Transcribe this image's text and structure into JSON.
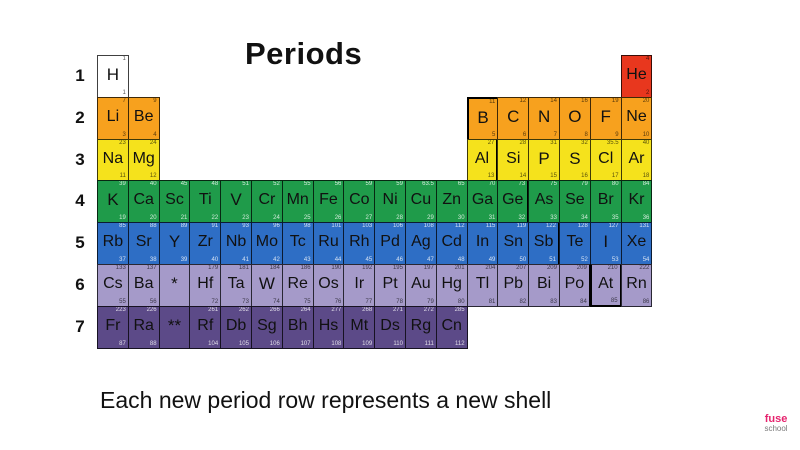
{
  "title": "Periods",
  "period_labels": [
    "1",
    "2",
    "3",
    "4",
    "5",
    "6",
    "7"
  ],
  "footer": "Each new period row represents a new shell",
  "logo": {
    "line1": "fuse",
    "line2": "school"
  },
  "colors": {
    "1": "#ffffff",
    "2": "#f7a11e",
    "3": "#f5e21c",
    "4": "#1f9b4a",
    "5": "#2e6ec5",
    "6": "#a59ac9",
    "7": "#5c4a88",
    "He": "#e8371e"
  },
  "elements": [
    {
      "s": "H",
      "p": 1,
      "c": 1,
      "m": "1",
      "n": "1"
    },
    {
      "s": "He",
      "p": 1,
      "c": 18,
      "m": "4",
      "n": "2"
    },
    {
      "s": "Li",
      "p": 2,
      "c": 1,
      "m": "7",
      "n": "3"
    },
    {
      "s": "Be",
      "p": 2,
      "c": 2,
      "m": "9",
      "n": "4"
    },
    {
      "s": "B",
      "p": 2,
      "c": 13,
      "m": "11",
      "n": "5"
    },
    {
      "s": "C",
      "p": 2,
      "c": 14,
      "m": "12",
      "n": "6"
    },
    {
      "s": "N",
      "p": 2,
      "c": 15,
      "m": "14",
      "n": "7"
    },
    {
      "s": "O",
      "p": 2,
      "c": 16,
      "m": "16",
      "n": "8"
    },
    {
      "s": "F",
      "p": 2,
      "c": 17,
      "m": "19",
      "n": "9"
    },
    {
      "s": "Ne",
      "p": 2,
      "c": 18,
      "m": "20",
      "n": "10"
    },
    {
      "s": "Na",
      "p": 3,
      "c": 1,
      "m": "23",
      "n": "11"
    },
    {
      "s": "Mg",
      "p": 3,
      "c": 2,
      "m": "24",
      "n": "12"
    },
    {
      "s": "Al",
      "p": 3,
      "c": 13,
      "m": "27",
      "n": "13"
    },
    {
      "s": "Si",
      "p": 3,
      "c": 14,
      "m": "28",
      "n": "14"
    },
    {
      "s": "P",
      "p": 3,
      "c": 15,
      "m": "31",
      "n": "15"
    },
    {
      "s": "S",
      "p": 3,
      "c": 16,
      "m": "32",
      "n": "16"
    },
    {
      "s": "Cl",
      "p": 3,
      "c": 17,
      "m": "35.5",
      "n": "17"
    },
    {
      "s": "Ar",
      "p": 3,
      "c": 18,
      "m": "40",
      "n": "18"
    },
    {
      "s": "K",
      "p": 4,
      "c": 1,
      "m": "39",
      "n": "19"
    },
    {
      "s": "Ca",
      "p": 4,
      "c": 2,
      "m": "40",
      "n": "20"
    },
    {
      "s": "Sc",
      "p": 4,
      "c": 3,
      "m": "45",
      "n": "21"
    },
    {
      "s": "Ti",
      "p": 4,
      "c": 4,
      "m": "48",
      "n": "22"
    },
    {
      "s": "V",
      "p": 4,
      "c": 5,
      "m": "51",
      "n": "23"
    },
    {
      "s": "Cr",
      "p": 4,
      "c": 6,
      "m": "52",
      "n": "24"
    },
    {
      "s": "Mn",
      "p": 4,
      "c": 7,
      "m": "55",
      "n": "25"
    },
    {
      "s": "Fe",
      "p": 4,
      "c": 8,
      "m": "56",
      "n": "26"
    },
    {
      "s": "Co",
      "p": 4,
      "c": 9,
      "m": "59",
      "n": "27"
    },
    {
      "s": "Ni",
      "p": 4,
      "c": 10,
      "m": "59",
      "n": "28"
    },
    {
      "s": "Cu",
      "p": 4,
      "c": 11,
      "m": "63.5",
      "n": "29"
    },
    {
      "s": "Zn",
      "p": 4,
      "c": 12,
      "m": "65",
      "n": "30"
    },
    {
      "s": "Ga",
      "p": 4,
      "c": 13,
      "m": "70",
      "n": "31"
    },
    {
      "s": "Ge",
      "p": 4,
      "c": 14,
      "m": "73",
      "n": "32"
    },
    {
      "s": "As",
      "p": 4,
      "c": 15,
      "m": "75",
      "n": "33"
    },
    {
      "s": "Se",
      "p": 4,
      "c": 16,
      "m": "79",
      "n": "34"
    },
    {
      "s": "Br",
      "p": 4,
      "c": 17,
      "m": "80",
      "n": "35"
    },
    {
      "s": "Kr",
      "p": 4,
      "c": 18,
      "m": "84",
      "n": "36"
    },
    {
      "s": "Rb",
      "p": 5,
      "c": 1,
      "m": "85",
      "n": "37"
    },
    {
      "s": "Sr",
      "p": 5,
      "c": 2,
      "m": "88",
      "n": "38"
    },
    {
      "s": "Y",
      "p": 5,
      "c": 3,
      "m": "89",
      "n": "39"
    },
    {
      "s": "Zr",
      "p": 5,
      "c": 4,
      "m": "91",
      "n": "40"
    },
    {
      "s": "Nb",
      "p": 5,
      "c": 5,
      "m": "93",
      "n": "41"
    },
    {
      "s": "Mo",
      "p": 5,
      "c": 6,
      "m": "96",
      "n": "42"
    },
    {
      "s": "Tc",
      "p": 5,
      "c": 7,
      "m": "98",
      "n": "43"
    },
    {
      "s": "Ru",
      "p": 5,
      "c": 8,
      "m": "101",
      "n": "44"
    },
    {
      "s": "Rh",
      "p": 5,
      "c": 9,
      "m": "103",
      "n": "45"
    },
    {
      "s": "Pd",
      "p": 5,
      "c": 10,
      "m": "106",
      "n": "46"
    },
    {
      "s": "Ag",
      "p": 5,
      "c": 11,
      "m": "108",
      "n": "47"
    },
    {
      "s": "Cd",
      "p": 5,
      "c": 12,
      "m": "112",
      "n": "48"
    },
    {
      "s": "In",
      "p": 5,
      "c": 13,
      "m": "115",
      "n": "49"
    },
    {
      "s": "Sn",
      "p": 5,
      "c": 14,
      "m": "119",
      "n": "50"
    },
    {
      "s": "Sb",
      "p": 5,
      "c": 15,
      "m": "122",
      "n": "51"
    },
    {
      "s": "Te",
      "p": 5,
      "c": 16,
      "m": "128",
      "n": "52"
    },
    {
      "s": "I",
      "p": 5,
      "c": 17,
      "m": "127",
      "n": "53"
    },
    {
      "s": "Xe",
      "p": 5,
      "c": 18,
      "m": "131",
      "n": "54"
    },
    {
      "s": "Cs",
      "p": 6,
      "c": 1,
      "m": "133",
      "n": "55"
    },
    {
      "s": "Ba",
      "p": 6,
      "c": 2,
      "m": "137",
      "n": "56"
    },
    {
      "s": "*",
      "p": 6,
      "c": 3,
      "m": "",
      "n": ""
    },
    {
      "s": "Hf",
      "p": 6,
      "c": 4,
      "m": "179",
      "n": "72"
    },
    {
      "s": "Ta",
      "p": 6,
      "c": 5,
      "m": "181",
      "n": "73"
    },
    {
      "s": "W",
      "p": 6,
      "c": 6,
      "m": "184",
      "n": "74"
    },
    {
      "s": "Re",
      "p": 6,
      "c": 7,
      "m": "186",
      "n": "75"
    },
    {
      "s": "Os",
      "p": 6,
      "c": 8,
      "m": "190",
      "n": "76"
    },
    {
      "s": "Ir",
      "p": 6,
      "c": 9,
      "m": "192",
      "n": "77"
    },
    {
      "s": "Pt",
      "p": 6,
      "c": 10,
      "m": "195",
      "n": "78"
    },
    {
      "s": "Au",
      "p": 6,
      "c": 11,
      "m": "197",
      "n": "79"
    },
    {
      "s": "Hg",
      "p": 6,
      "c": 12,
      "m": "201",
      "n": "80"
    },
    {
      "s": "Tl",
      "p": 6,
      "c": 13,
      "m": "204",
      "n": "81"
    },
    {
      "s": "Pb",
      "p": 6,
      "c": 14,
      "m": "207",
      "n": "82"
    },
    {
      "s": "Bi",
      "p": 6,
      "c": 15,
      "m": "209",
      "n": "83"
    },
    {
      "s": "Po",
      "p": 6,
      "c": 16,
      "m": "209",
      "n": "84"
    },
    {
      "s": "At",
      "p": 6,
      "c": 17,
      "m": "210",
      "n": "85"
    },
    {
      "s": "Rn",
      "p": 6,
      "c": 18,
      "m": "222",
      "n": "86"
    },
    {
      "s": "Fr",
      "p": 7,
      "c": 1,
      "m": "223",
      "n": "87"
    },
    {
      "s": "Ra",
      "p": 7,
      "c": 2,
      "m": "226",
      "n": "88"
    },
    {
      "s": "**",
      "p": 7,
      "c": 3,
      "m": "",
      "n": ""
    },
    {
      "s": "Rf",
      "p": 7,
      "c": 4,
      "m": "261",
      "n": "104"
    },
    {
      "s": "Db",
      "p": 7,
      "c": 5,
      "m": "262",
      "n": "105"
    },
    {
      "s": "Sg",
      "p": 7,
      "c": 6,
      "m": "266",
      "n": "106"
    },
    {
      "s": "Bh",
      "p": 7,
      "c": 7,
      "m": "264",
      "n": "107"
    },
    {
      "s": "Hs",
      "p": 7,
      "c": 8,
      "m": "277",
      "n": "108"
    },
    {
      "s": "Mt",
      "p": 7,
      "c": 9,
      "m": "268",
      "n": "109"
    },
    {
      "s": "Ds",
      "p": 7,
      "c": 10,
      "m": "271",
      "n": "110"
    },
    {
      "s": "Rg",
      "p": 7,
      "c": 11,
      "m": "272",
      "n": "111"
    },
    {
      "s": "Cn",
      "p": 7,
      "c": 12,
      "m": "285",
      "n": "112"
    }
  ]
}
